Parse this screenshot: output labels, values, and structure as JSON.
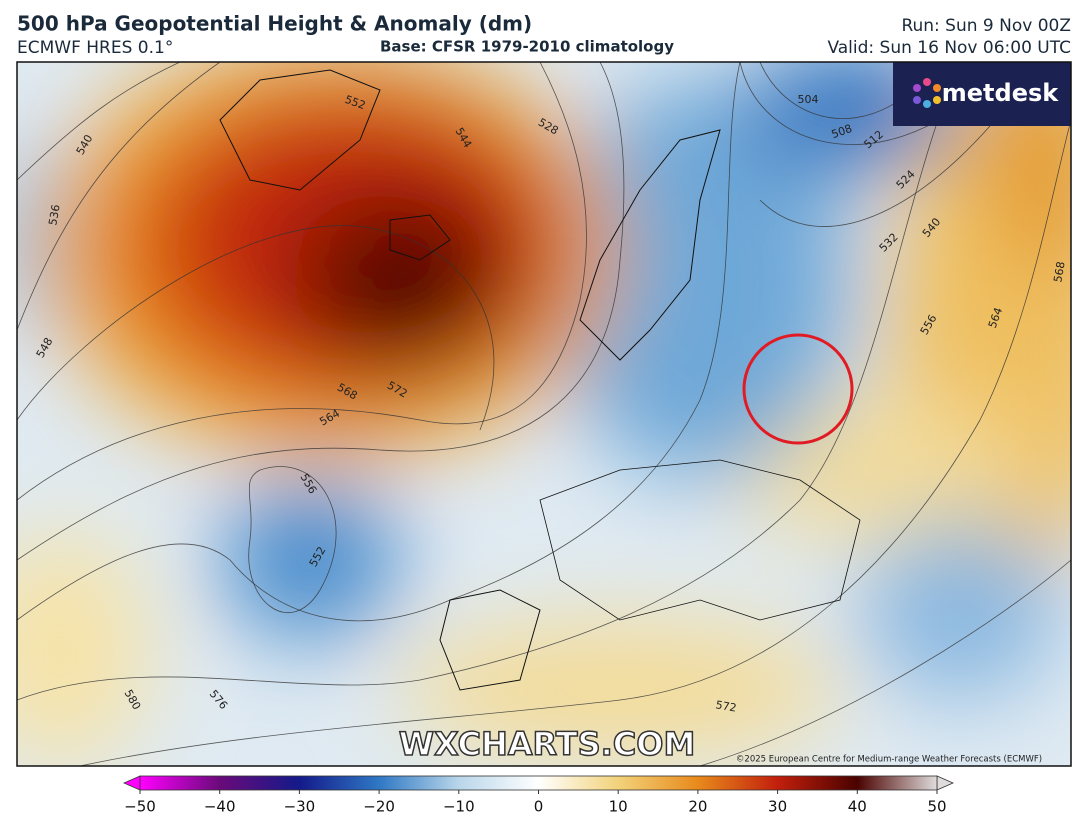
{
  "header": {
    "title": "500 hPa Geopotential Height & Anomaly (dm)",
    "model": "ECMWF HRES 0.1°",
    "base": "Base: CFSR 1979-2010 climatology",
    "run": "Run: Sun 9 Nov 00Z",
    "valid": "Valid: Sun 16 Nov 06:00 UTC"
  },
  "logo": "metdesk",
  "watermark": "WXCHARTS.COM",
  "copyright": "©2025 European Centre for Medium-range Weather Forecasts (ECMWF)",
  "contour_labels": [
    "552",
    "528",
    "544",
    "540",
    "536",
    "548",
    "572",
    "568",
    "564",
    "556",
    "552",
    "580",
    "576",
    "572",
    "504",
    "508",
    "512",
    "524",
    "532",
    "540",
    "556",
    "564",
    "568"
  ],
  "colorbar": {
    "lim": [
      -50,
      50
    ],
    "ticks": [
      {
        "value": -50,
        "label": "−50"
      },
      {
        "value": -40,
        "label": "−40"
      },
      {
        "value": -30,
        "label": "−30"
      },
      {
        "value": -20,
        "label": "−20"
      },
      {
        "value": -10,
        "label": "−10"
      },
      0,
      10,
      20,
      30,
      40,
      50
    ],
    "colors": [
      "#ff00ff",
      "#6a0a7a",
      "#141a8a",
      "#2f78c4",
      "#b9d6ea",
      "#ffffff",
      "#f2d27a",
      "#e88a1c",
      "#c21f0c",
      "#4a0200",
      "#e0dcdc"
    ]
  }
}
